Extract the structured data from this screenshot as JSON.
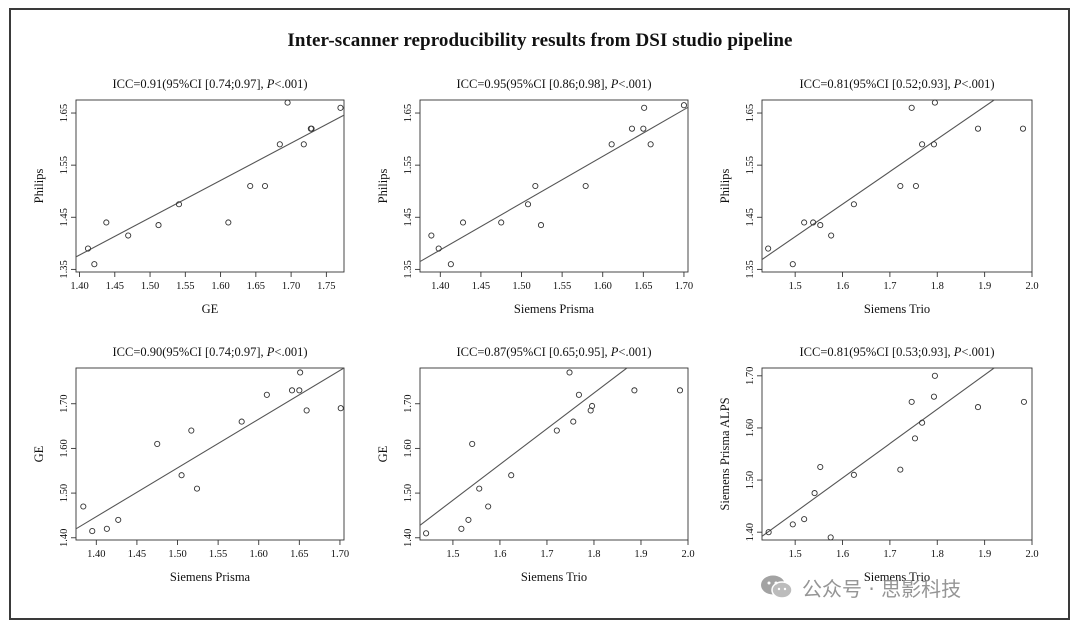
{
  "title": "Inter-scanner reproducibility results from DSI studio pipeline",
  "watermark": "公众号 · 思影科技",
  "chart_data": [
    {
      "type": "scatter",
      "title": "ICC=0.91(95%CI [0.74;0.97], P<.001)",
      "title_parts": [
        "ICC=0.91(95%CI [0.74;0.97], ",
        "P",
        "<.001)"
      ],
      "xlabel": "GE",
      "ylabel": "Philips",
      "xlim": [
        1.395,
        1.775
      ],
      "ylim": [
        1.345,
        1.675
      ],
      "xticks": [
        1.4,
        1.45,
        1.5,
        1.55,
        1.6,
        1.65,
        1.7,
        1.75
      ],
      "xtick_labels": [
        "1.40",
        "1.45",
        "1.50",
        "1.55",
        "1.60",
        "1.65",
        "1.70",
        "1.75"
      ],
      "yticks": [
        1.35,
        1.45,
        1.55,
        1.65
      ],
      "ytick_labels": [
        "1.35",
        "1.45",
        "1.55",
        "1.65"
      ],
      "points": [
        [
          1.412,
          1.39
        ],
        [
          1.421,
          1.36
        ],
        [
          1.438,
          1.44
        ],
        [
          1.469,
          1.415
        ],
        [
          1.512,
          1.435
        ],
        [
          1.541,
          1.475
        ],
        [
          1.611,
          1.44
        ],
        [
          1.642,
          1.51
        ],
        [
          1.663,
          1.51
        ],
        [
          1.684,
          1.59
        ],
        [
          1.695,
          1.67
        ],
        [
          1.718,
          1.59
        ],
        [
          1.728,
          1.62
        ],
        [
          1.729,
          1.62
        ],
        [
          1.77,
          1.66
        ]
      ],
      "fit_line": [
        [
          1.395,
          1.374
        ],
        [
          1.775,
          1.646
        ]
      ]
    },
    {
      "type": "scatter",
      "title": "ICC=0.95(95%CI [0.86;0.98], P<.001)",
      "title_parts": [
        "ICC=0.95(95%CI [0.86;0.98], ",
        "P",
        "<.001)"
      ],
      "xlabel": "Siemens Prisma",
      "ylabel": "Philips",
      "xlim": [
        1.375,
        1.705
      ],
      "ylim": [
        1.345,
        1.675
      ],
      "xticks": [
        1.4,
        1.45,
        1.5,
        1.55,
        1.6,
        1.65,
        1.7
      ],
      "xtick_labels": [
        "1.40",
        "1.45",
        "1.50",
        "1.55",
        "1.60",
        "1.65",
        "1.70"
      ],
      "yticks": [
        1.35,
        1.45,
        1.55,
        1.65
      ],
      "ytick_labels": [
        "1.35",
        "1.45",
        "1.55",
        "1.65"
      ],
      "points": [
        [
          1.389,
          1.415
        ],
        [
          1.398,
          1.39
        ],
        [
          1.413,
          1.36
        ],
        [
          1.428,
          1.44
        ],
        [
          1.475,
          1.44
        ],
        [
          1.508,
          1.475
        ],
        [
          1.517,
          1.51
        ],
        [
          1.524,
          1.435
        ],
        [
          1.579,
          1.51
        ],
        [
          1.611,
          1.59
        ],
        [
          1.636,
          1.62
        ],
        [
          1.65,
          1.62
        ],
        [
          1.651,
          1.66
        ],
        [
          1.659,
          1.59
        ],
        [
          1.7,
          1.665
        ]
      ],
      "fit_line": [
        [
          1.375,
          1.365
        ],
        [
          1.705,
          1.661
        ]
      ]
    },
    {
      "type": "scatter",
      "title": "ICC=0.81(95%CI [0.52;0.93], P<.001)",
      "title_parts": [
        "ICC=0.81(95%CI [0.52;0.93], ",
        "P",
        "<.001)"
      ],
      "xlabel": "Siemens Trio",
      "ylabel": "Philips",
      "xlim": [
        1.43,
        2.0
      ],
      "ylim": [
        1.345,
        1.675
      ],
      "xticks": [
        1.5,
        1.6,
        1.7,
        1.8,
        1.9,
        2.0
      ],
      "xtick_labels": [
        "1.5",
        "1.6",
        "1.7",
        "1.8",
        "1.9",
        "2.0"
      ],
      "yticks": [
        1.35,
        1.45,
        1.55,
        1.65
      ],
      "ytick_labels": [
        "1.35",
        "1.45",
        "1.55",
        "1.65"
      ],
      "points": [
        [
          1.443,
          1.39
        ],
        [
          1.495,
          1.36
        ],
        [
          1.519,
          1.44
        ],
        [
          1.538,
          1.44
        ],
        [
          1.553,
          1.435
        ],
        [
          1.576,
          1.415
        ],
        [
          1.624,
          1.475
        ],
        [
          1.722,
          1.51
        ],
        [
          1.746,
          1.66
        ],
        [
          1.755,
          1.51
        ],
        [
          1.768,
          1.59
        ],
        [
          1.793,
          1.59
        ],
        [
          1.795,
          1.67
        ],
        [
          1.886,
          1.62
        ],
        [
          1.981,
          1.62
        ]
      ],
      "fit_line": [
        [
          1.43,
          1.369
        ],
        [
          1.92,
          1.675
        ]
      ]
    },
    {
      "type": "scatter",
      "title": "ICC=0.90(95%CI [0.74;0.97], P<.001)",
      "title_parts": [
        "ICC=0.90(95%CI [0.74;0.97], ",
        "P",
        "<.001)"
      ],
      "xlabel": "Siemens Prisma",
      "ylabel": "GE",
      "xlim": [
        1.375,
        1.705
      ],
      "ylim": [
        1.395,
        1.78
      ],
      "xticks": [
        1.4,
        1.45,
        1.5,
        1.55,
        1.6,
        1.65,
        1.7
      ],
      "xtick_labels": [
        "1.40",
        "1.45",
        "1.50",
        "1.55",
        "1.60",
        "1.65",
        "1.70"
      ],
      "yticks": [
        1.4,
        1.5,
        1.6,
        1.7
      ],
      "ytick_labels": [
        "1.40",
        "1.50",
        "1.60",
        "1.70"
      ],
      "points": [
        [
          1.384,
          1.47
        ],
        [
          1.395,
          1.415
        ],
        [
          1.413,
          1.42
        ],
        [
          1.427,
          1.44
        ],
        [
          1.475,
          1.61
        ],
        [
          1.505,
          1.54
        ],
        [
          1.517,
          1.64
        ],
        [
          1.524,
          1.51
        ],
        [
          1.579,
          1.66
        ],
        [
          1.61,
          1.72
        ],
        [
          1.641,
          1.73
        ],
        [
          1.65,
          1.73
        ],
        [
          1.651,
          1.77
        ],
        [
          1.659,
          1.685
        ],
        [
          1.701,
          1.69
        ]
      ],
      "fit_line": [
        [
          1.375,
          1.42
        ],
        [
          1.705,
          1.78
        ]
      ]
    },
    {
      "type": "scatter",
      "title": "ICC=0.87(95%CI [0.65;0.95], P<.001)",
      "title_parts": [
        "ICC=0.87(95%CI [0.65;0.95], ",
        "P",
        "<.001)"
      ],
      "xlabel": "Siemens Trio",
      "ylabel": "GE",
      "xlim": [
        1.43,
        2.0
      ],
      "ylim": [
        1.395,
        1.78
      ],
      "xticks": [
        1.5,
        1.6,
        1.7,
        1.8,
        1.9,
        2.0
      ],
      "xtick_labels": [
        "1.5",
        "1.6",
        "1.7",
        "1.8",
        "1.9",
        "2.0"
      ],
      "yticks": [
        1.4,
        1.5,
        1.6,
        1.7
      ],
      "ytick_labels": [
        "1.40",
        "1.50",
        "1.60",
        "1.70"
      ],
      "points": [
        [
          1.443,
          1.41
        ],
        [
          1.518,
          1.42
        ],
        [
          1.533,
          1.44
        ],
        [
          1.541,
          1.61
        ],
        [
          1.556,
          1.51
        ],
        [
          1.575,
          1.47
        ],
        [
          1.624,
          1.54
        ],
        [
          1.721,
          1.64
        ],
        [
          1.748,
          1.77
        ],
        [
          1.756,
          1.66
        ],
        [
          1.768,
          1.72
        ],
        [
          1.793,
          1.685
        ],
        [
          1.796,
          1.695
        ],
        [
          1.886,
          1.73
        ],
        [
          1.983,
          1.73
        ]
      ],
      "fit_line": [
        [
          1.43,
          1.428
        ],
        [
          1.87,
          1.78
        ]
      ]
    },
    {
      "type": "scatter",
      "title": "ICC=0.81(95%CI [0.53;0.93], P<.001)",
      "title_parts": [
        "ICC=0.81(95%CI [0.53;0.93], ",
        "P",
        "<.001)"
      ],
      "xlabel": "Siemens Trio",
      "ylabel": "Siemens Prisma ALPS",
      "xlim": [
        1.43,
        2.0
      ],
      "ylim": [
        1.385,
        1.715
      ],
      "xticks": [
        1.5,
        1.6,
        1.7,
        1.8,
        1.9,
        2.0
      ],
      "xtick_labels": [
        "1.5",
        "1.6",
        "1.7",
        "1.8",
        "1.9",
        "2.0"
      ],
      "yticks": [
        1.4,
        1.5,
        1.6,
        1.7
      ],
      "ytick_labels": [
        "1.40",
        "1.50",
        "1.60",
        "1.70"
      ],
      "points": [
        [
          1.444,
          1.4
        ],
        [
          1.495,
          1.415
        ],
        [
          1.519,
          1.425
        ],
        [
          1.541,
          1.475
        ],
        [
          1.553,
          1.525
        ],
        [
          1.575,
          1.39
        ],
        [
          1.624,
          1.51
        ],
        [
          1.722,
          1.52
        ],
        [
          1.746,
          1.65
        ],
        [
          1.753,
          1.58
        ],
        [
          1.768,
          1.61
        ],
        [
          1.793,
          1.66
        ],
        [
          1.795,
          1.7
        ],
        [
          1.886,
          1.64
        ],
        [
          1.983,
          1.65
        ]
      ],
      "fit_line": [
        [
          1.43,
          1.392
        ],
        [
          1.92,
          1.715
        ]
      ]
    }
  ]
}
